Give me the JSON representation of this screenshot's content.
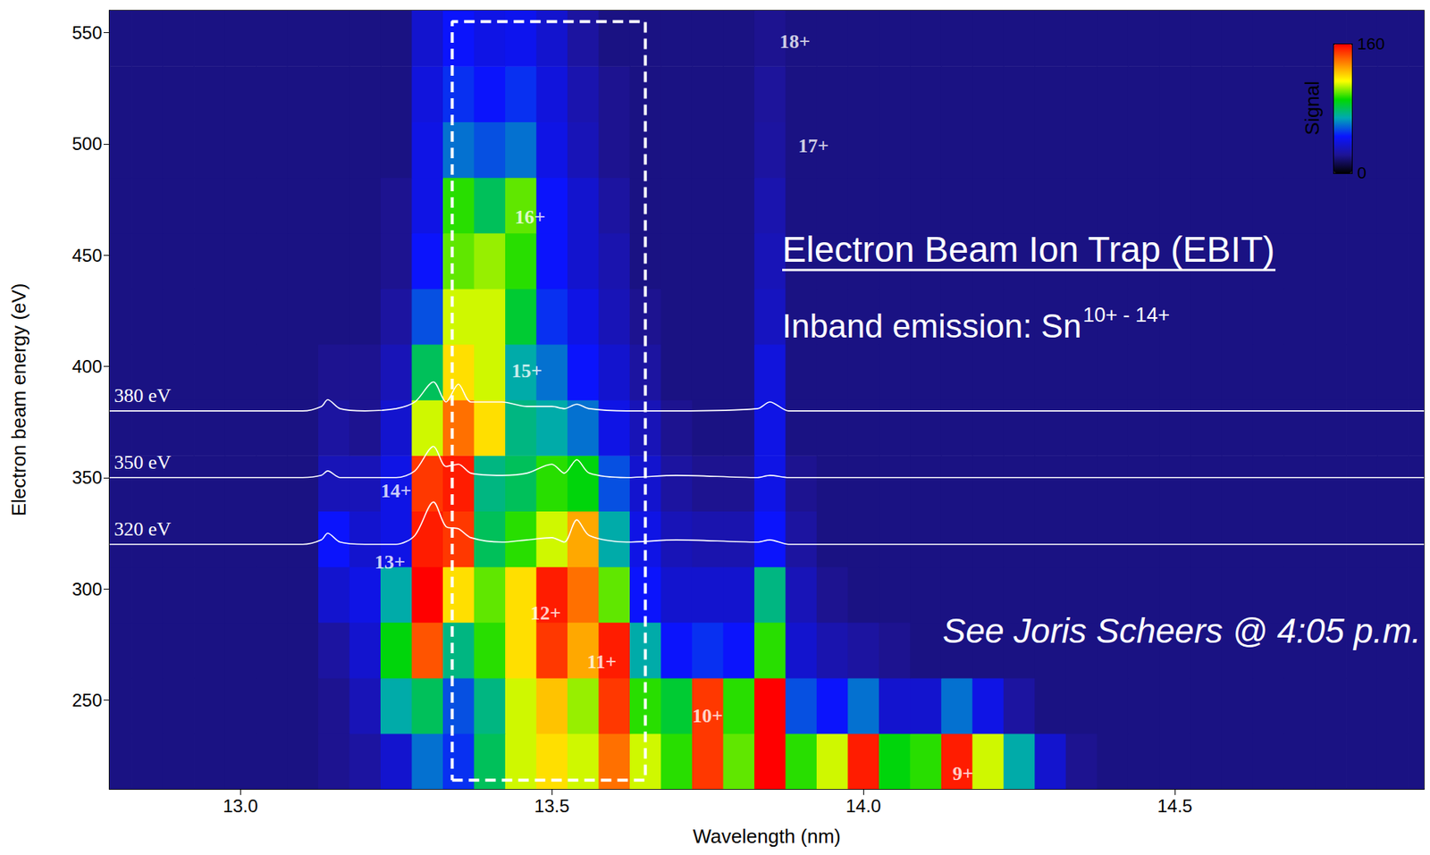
{
  "chart_data": {
    "type": "heatmap",
    "title": "Electron Beam Ion Trap (EBIT)",
    "subtitle": {
      "text": "Inband emission: Sn",
      "superscript": "10+ - 14+"
    },
    "caption": "See Joris Scheers @ 4:05 p.m.",
    "x_label": "Wavelength (nm)",
    "y_label": "Electron beam energy (eV)",
    "xlim": [
      12.79,
      14.9
    ],
    "ylim": [
      210,
      560
    ],
    "xticks": [
      {
        "value": 13,
        "label": "13.0"
      },
      13.5,
      {
        "value": 14,
        "label": "14.0"
      },
      14.5
    ],
    "yticks": [
      250,
      300,
      350,
      400,
      450,
      500,
      550
    ],
    "grid": false,
    "heatmap": {
      "x": [
        12.8,
        12.85,
        12.9,
        12.95,
        13.0,
        13.05,
        13.1,
        13.15,
        13.2,
        13.25,
        13.3,
        13.35,
        13.4,
        13.45,
        13.5,
        13.55,
        13.6,
        13.65,
        13.7,
        13.75,
        13.8,
        13.85,
        13.9,
        13.95,
        14.0,
        14.05,
        14.1,
        14.15,
        14.2,
        14.25,
        14.3,
        14.35,
        14.4,
        14.45,
        14.5,
        14.55,
        14.6,
        14.65,
        14.7,
        14.75,
        14.8,
        14.85,
        14.9
      ],
      "y": [
        222.5,
        247.5,
        272.5,
        297.5,
        322.5,
        347.5,
        372.5,
        397.5,
        422.5,
        447.5,
        472.5,
        497.5,
        522.5,
        547.5
      ],
      "z": [
        [
          20,
          20,
          20,
          20,
          20,
          20,
          20,
          22,
          25,
          35,
          60,
          50,
          80,
          110,
          120,
          110,
          140,
          110,
          95,
          150,
          100,
          160,
          95,
          110,
          155,
          90,
          95,
          155,
          110,
          70,
          35,
          22,
          20,
          20,
          20,
          20,
          20,
          20,
          20,
          20,
          20,
          20,
          20
        ],
        [
          20,
          20,
          20,
          20,
          20,
          20,
          20,
          22,
          30,
          70,
          80,
          55,
          75,
          110,
          125,
          105,
          150,
          95,
          85,
          150,
          95,
          160,
          55,
          45,
          60,
          35,
          35,
          60,
          40,
          25,
          20,
          20,
          20,
          20,
          20,
          20,
          20,
          20,
          20,
          20,
          20,
          20,
          20
        ],
        [
          20,
          20,
          20,
          20,
          20,
          20,
          20,
          25,
          35,
          90,
          145,
          75,
          95,
          120,
          150,
          130,
          155,
          70,
          45,
          50,
          45,
          95,
          35,
          28,
          25,
          22,
          20,
          20,
          20,
          20,
          20,
          20,
          20,
          20,
          20,
          20,
          20,
          20,
          20,
          20,
          20,
          20,
          20
        ],
        [
          20,
          20,
          20,
          20,
          20,
          20,
          20,
          35,
          40,
          70,
          160,
          120,
          100,
          120,
          155,
          140,
          100,
          45,
          35,
          35,
          35,
          75,
          30,
          22,
          20,
          20,
          20,
          20,
          20,
          20,
          20,
          20,
          20,
          20,
          20,
          20,
          20,
          20,
          20,
          20,
          20,
          20,
          20
        ],
        [
          20,
          20,
          20,
          20,
          20,
          20,
          20,
          45,
          35,
          40,
          155,
          150,
          80,
          95,
          110,
          130,
          70,
          40,
          30,
          28,
          28,
          45,
          25,
          20,
          20,
          20,
          20,
          20,
          20,
          20,
          20,
          20,
          20,
          20,
          20,
          20,
          20,
          20,
          20,
          20,
          20,
          20,
          20
        ],
        [
          20,
          20,
          20,
          20,
          20,
          20,
          20,
          30,
          30,
          40,
          150,
          155,
          75,
          80,
          95,
          90,
          55,
          35,
          25,
          22,
          22,
          40,
          22,
          20,
          20,
          20,
          20,
          20,
          20,
          20,
          20,
          20,
          20,
          20,
          20,
          20,
          20,
          20,
          20,
          20,
          20,
          20,
          20
        ],
        [
          20,
          20,
          20,
          20,
          20,
          20,
          20,
          25,
          22,
          35,
          110,
          140,
          120,
          75,
          70,
          60,
          40,
          30,
          22,
          20,
          20,
          40,
          20,
          20,
          20,
          20,
          20,
          20,
          20,
          20,
          20,
          20,
          20,
          20,
          20,
          20,
          20,
          20,
          20,
          20,
          20,
          20,
          20
        ],
        [
          20,
          20,
          20,
          20,
          20,
          20,
          20,
          22,
          22,
          30,
          80,
          120,
          110,
          70,
          60,
          45,
          35,
          25,
          20,
          20,
          20,
          38,
          20,
          20,
          20,
          20,
          20,
          20,
          20,
          20,
          20,
          20,
          20,
          20,
          20,
          20,
          20,
          20,
          20,
          20,
          20,
          20,
          20
        ],
        [
          20,
          20,
          20,
          20,
          20,
          20,
          20,
          20,
          20,
          25,
          55,
          110,
          110,
          85,
          50,
          40,
          30,
          22,
          20,
          20,
          20,
          32,
          20,
          20,
          20,
          20,
          20,
          20,
          20,
          20,
          20,
          20,
          20,
          20,
          20,
          20,
          20,
          20,
          20,
          20,
          20,
          20,
          20
        ],
        [
          20,
          20,
          20,
          20,
          20,
          20,
          20,
          20,
          20,
          22,
          45,
          100,
          105,
          95,
          45,
          35,
          28,
          20,
          20,
          20,
          20,
          30,
          20,
          20,
          20,
          20,
          20,
          20,
          20,
          20,
          20,
          20,
          20,
          20,
          20,
          20,
          20,
          20,
          20,
          20,
          20,
          20,
          20
        ],
        [
          20,
          20,
          20,
          20,
          20,
          20,
          20,
          20,
          20,
          22,
          40,
          95,
          80,
          100,
          45,
          35,
          25,
          20,
          20,
          20,
          20,
          28,
          20,
          20,
          20,
          20,
          20,
          20,
          20,
          20,
          20,
          20,
          20,
          20,
          20,
          20,
          20,
          20,
          20,
          20,
          20,
          20,
          20
        ],
        [
          20,
          20,
          20,
          20,
          20,
          20,
          20,
          20,
          20,
          20,
          40,
          60,
          55,
          60,
          40,
          30,
          22,
          20,
          20,
          20,
          20,
          25,
          20,
          20,
          20,
          20,
          20,
          20,
          20,
          20,
          20,
          20,
          20,
          20,
          20,
          20,
          20,
          20,
          20,
          20,
          20,
          20,
          20
        ],
        [
          20,
          20,
          20,
          20,
          20,
          20,
          20,
          20,
          20,
          20,
          38,
          50,
          45,
          50,
          38,
          28,
          22,
          20,
          20,
          20,
          20,
          24,
          20,
          20,
          20,
          20,
          20,
          20,
          20,
          20,
          20,
          20,
          20,
          20,
          20,
          20,
          20,
          20,
          20,
          20,
          20,
          20,
          20
        ],
        [
          20,
          20,
          20,
          20,
          20,
          20,
          20,
          20,
          20,
          20,
          35,
          45,
          40,
          42,
          35,
          25,
          20,
          20,
          20,
          20,
          20,
          22,
          20,
          20,
          20,
          20,
          20,
          20,
          20,
          20,
          20,
          20,
          20,
          20,
          20,
          20,
          20,
          20,
          20,
          20,
          20,
          20,
          20
        ]
      ]
    },
    "colorbar": {
      "label": "Signal",
      "range": [
        0,
        160
      ],
      "ticks": [
        0,
        160
      ]
    },
    "series": [
      {
        "name": "380 eV",
        "type": "line",
        "color": "#ffffff",
        "x": [
          12.79,
          13.1,
          13.13,
          13.14,
          13.16,
          13.2,
          13.25,
          13.28,
          13.31,
          13.33,
          13.35,
          13.37,
          13.42,
          13.46,
          13.5,
          13.52,
          13.54,
          13.56,
          13.62,
          13.7,
          13.83,
          13.85,
          13.88,
          14.2,
          14.9
        ],
        "values": [
          380,
          380,
          382,
          385,
          381,
          380,
          381,
          384,
          393,
          384,
          392,
          384,
          384,
          382,
          382,
          381,
          383,
          381,
          380,
          380,
          381,
          384,
          380,
          380,
          380
        ]
      },
      {
        "name": "350 eV",
        "type": "line",
        "color": "#ffffff",
        "x": [
          12.79,
          13.1,
          13.13,
          13.14,
          13.16,
          13.2,
          13.25,
          13.28,
          13.31,
          13.33,
          13.35,
          13.37,
          13.42,
          13.46,
          13.5,
          13.52,
          13.54,
          13.56,
          13.62,
          13.7,
          13.83,
          13.85,
          13.88,
          14.2,
          14.9
        ],
        "values": [
          350,
          350,
          351,
          353,
          350,
          350,
          350,
          353,
          364,
          355,
          356,
          352,
          351,
          352,
          356,
          352,
          358,
          352,
          350,
          351,
          350,
          351,
          350,
          350,
          350
        ]
      },
      {
        "name": "320 eV",
        "type": "line",
        "color": "#ffffff",
        "x": [
          12.79,
          13.1,
          13.13,
          13.14,
          13.16,
          13.2,
          13.25,
          13.28,
          13.31,
          13.33,
          13.35,
          13.37,
          13.42,
          13.46,
          13.5,
          13.52,
          13.54,
          13.56,
          13.62,
          13.7,
          13.83,
          13.85,
          13.88,
          14.2,
          14.9
        ],
        "values": [
          320,
          320,
          322,
          325,
          321,
          320,
          320,
          324,
          339,
          328,
          327,
          323,
          321,
          322,
          323,
          321,
          331,
          324,
          321,
          322,
          321,
          322,
          320,
          320,
          320
        ]
      }
    ],
    "box": {
      "x": [
        13.34,
        13.65
      ],
      "y": [
        214,
        555
      ],
      "color": "#ffffff",
      "line_style": "dashed"
    },
    "annotations": [
      {
        "text": "18+",
        "x": 13.89,
        "y": 546
      },
      {
        "text": "17+",
        "x": 13.92,
        "y": 499
      },
      {
        "text": "16+",
        "x": 13.465,
        "y": 467
      },
      {
        "text": "15+",
        "x": 13.46,
        "y": 398
      },
      {
        "text": "14+",
        "x": 13.25,
        "y": 344
      },
      {
        "text": "13+",
        "x": 13.24,
        "y": 312
      },
      {
        "text": "12+",
        "x": 13.49,
        "y": 289
      },
      {
        "text": "11+",
        "x": 13.58,
        "y": 267
      },
      {
        "text": "10+",
        "x": 13.75,
        "y": 243
      },
      {
        "text": "9+",
        "x": 14.16,
        "y": 217
      }
    ]
  }
}
